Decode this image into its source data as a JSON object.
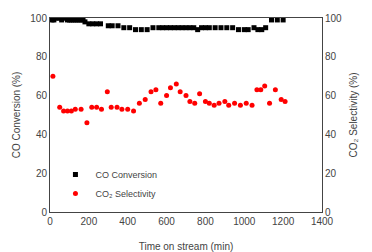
{
  "chart_data": {
    "type": "scatter",
    "x_label": "Time on stream (min)",
    "y_label": "CO Conversion (%)",
    "y2_label": "CO₂ Selectivity (%)",
    "xlim": [
      0,
      1400
    ],
    "xticks": [
      0,
      200,
      400,
      600,
      800,
      1000,
      1200,
      1400
    ],
    "ylim": [
      0,
      100
    ],
    "yticks": [
      0,
      20,
      40,
      60,
      80,
      100
    ],
    "y2lim": [
      0,
      100
    ],
    "y2ticks": [
      0,
      20,
      40,
      60,
      80,
      100
    ],
    "grid": false,
    "legend": "lower left",
    "series": [
      {
        "name": "CO Conversion",
        "color": "black",
        "marker": "square",
        "x": [
          10,
          20,
          30,
          40,
          50,
          60,
          70,
          80,
          90,
          100,
          110,
          120,
          130,
          140,
          150,
          160,
          170,
          180,
          200,
          220,
          240,
          260,
          300,
          320,
          350,
          380,
          410,
          440,
          470,
          500,
          530,
          560,
          580,
          600,
          620,
          640,
          660,
          680,
          700,
          720,
          740,
          760,
          780,
          800,
          820,
          850,
          880,
          910,
          940,
          970,
          1000,
          1020,
          1050,
          1070,
          1090,
          1110,
          1140,
          1170,
          1200
        ],
        "values": [
          99,
          99,
          100,
          100,
          100,
          99,
          100,
          100,
          99,
          99,
          99,
          99,
          99,
          99,
          99,
          99,
          99,
          98,
          97,
          97,
          97,
          97,
          96,
          96,
          96,
          95,
          95,
          94,
          94,
          94,
          95,
          95,
          95,
          95,
          95,
          95,
          95,
          95,
          95,
          95,
          95,
          94,
          95,
          95,
          95,
          95,
          95,
          95,
          95,
          94,
          94,
          94,
          95,
          94,
          94,
          95,
          99,
          99,
          99
        ]
      },
      {
        "name": "CO₂ Selectivity",
        "color": "red",
        "marker": "circle",
        "axis": "y2",
        "x": [
          15,
          50,
          70,
          90,
          110,
          130,
          160,
          190,
          215,
          240,
          265,
          295,
          315,
          345,
          370,
          400,
          430,
          460,
          490,
          520,
          545,
          570,
          600,
          620,
          650,
          670,
          700,
          720,
          745,
          770,
          800,
          820,
          845,
          870,
          900,
          920,
          950,
          980,
          1010,
          1040,
          1065,
          1085,
          1105,
          1130,
          1160,
          1190,
          1210
        ],
        "values": [
          70,
          54,
          52,
          52,
          52,
          53,
          53,
          46,
          54,
          54,
          53,
          62,
          54,
          54,
          53,
          53,
          52,
          56,
          58,
          62,
          63,
          56,
          60,
          64,
          66,
          62,
          60,
          57,
          56,
          61,
          57,
          56,
          55,
          56,
          57,
          55,
          56,
          55,
          56,
          55,
          63,
          63,
          65,
          56,
          63,
          58,
          57
        ]
      }
    ]
  }
}
